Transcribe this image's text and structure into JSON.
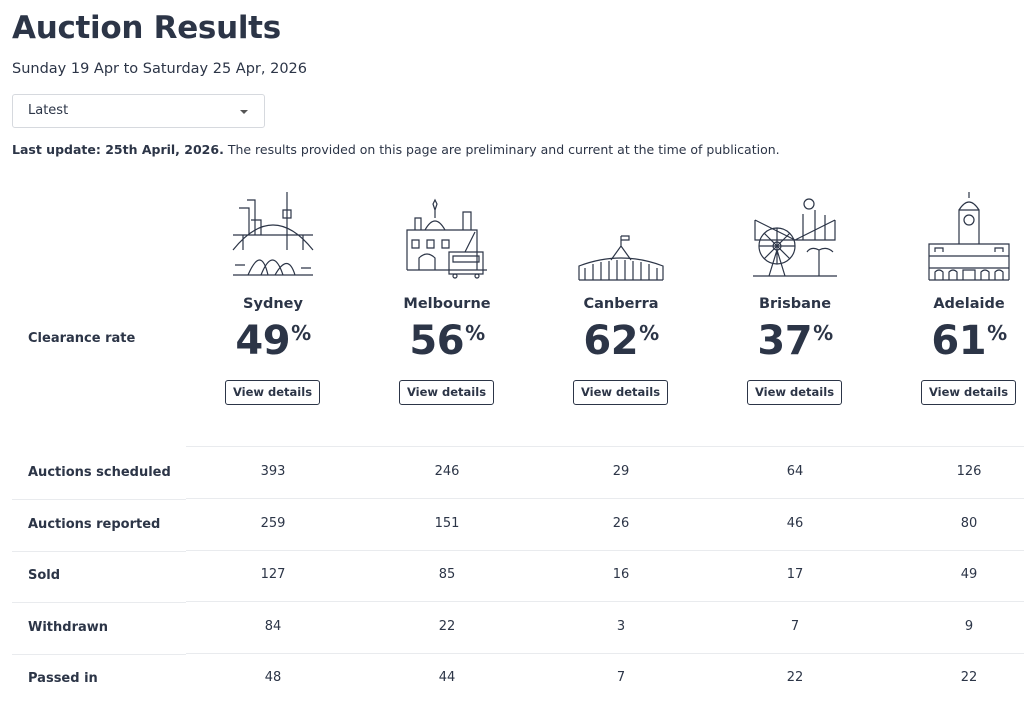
{
  "header": {
    "title": "Auction Results",
    "date_range": "Sunday 19 Apr to Saturday 25 Apr, 2026"
  },
  "filter": {
    "selected": "Latest"
  },
  "notice": {
    "label": "Last update: 25th April, 2026.",
    "text": "The results provided on this page are preliminary and current at the time of publication."
  },
  "table": {
    "clearance_label": "Clearance rate",
    "rate_unit": "%",
    "button_label": "View details",
    "cities": [
      {
        "name": "Sydney",
        "clearance_rate": 49
      },
      {
        "name": "Melbourne",
        "clearance_rate": 56
      },
      {
        "name": "Canberra",
        "clearance_rate": 62
      },
      {
        "name": "Brisbane",
        "clearance_rate": 37
      },
      {
        "name": "Adelaide",
        "clearance_rate": 61
      }
    ],
    "row_labels": [
      "Auctions scheduled",
      "Auctions reported",
      "Sold",
      "Withdrawn",
      "Passed in"
    ],
    "rows": [
      [
        393,
        246,
        29,
        64,
        126
      ],
      [
        259,
        151,
        26,
        46,
        80
      ],
      [
        127,
        85,
        16,
        17,
        49
      ],
      [
        84,
        22,
        3,
        7,
        9
      ],
      [
        48,
        44,
        7,
        22,
        22
      ]
    ]
  }
}
